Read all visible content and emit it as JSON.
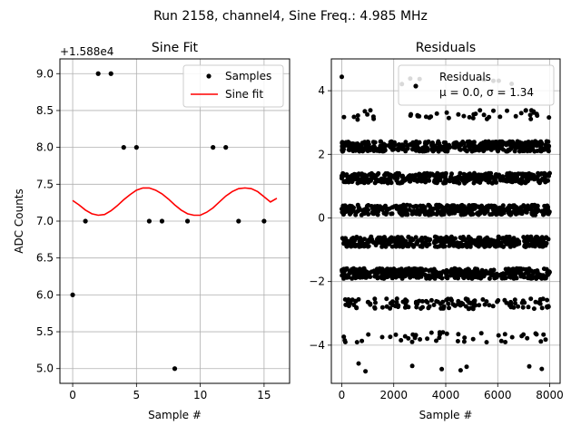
{
  "figure": {
    "title": "Run 2158, channel4, Sine Freq.: 4.985 MHz"
  },
  "chart_data": [
    {
      "type": "scatter",
      "title": "Sine Fit",
      "xlabel": "Sample #",
      "ylabel": "ADC Counts",
      "offset_text": "+1.588e4",
      "xlim": [
        -1,
        17
      ],
      "ylim": [
        4.8,
        9.2
      ],
      "x_ticks": [
        0,
        5,
        10,
        15
      ],
      "x_tick_labels": [
        "0",
        "5",
        "10",
        "15"
      ],
      "y_ticks": [
        5.0,
        5.5,
        6.0,
        6.5,
        7.0,
        7.5,
        8.0,
        8.5,
        9.0
      ],
      "y_tick_labels": [
        "5.0",
        "5.5",
        "6.0",
        "6.5",
        "7.0",
        "7.5",
        "8.0",
        "8.5",
        "9.0"
      ],
      "grid": true,
      "legend_position": "top-right",
      "series": [
        {
          "name": "Samples",
          "color": "#000000",
          "marker": "dot",
          "x": [
            0,
            1,
            2,
            3,
            4,
            5,
            6,
            7,
            8,
            9,
            11,
            12,
            13,
            15
          ],
          "y": [
            6,
            7,
            9,
            9,
            8,
            8,
            7,
            7,
            5,
            7,
            8,
            8,
            7,
            7
          ]
        },
        {
          "name": "Sine fit",
          "color": "#ff0000",
          "style": "line",
          "x": [
            0,
            0.5,
            1,
            1.5,
            2,
            2.5,
            3,
            3.5,
            4,
            4.5,
            5,
            5.5,
            6,
            6.5,
            7,
            7.5,
            8,
            8.5,
            9,
            9.5,
            10,
            10.5,
            11,
            11.5,
            12,
            12.5,
            13,
            13.5,
            14,
            14.5,
            15,
            15.5,
            16
          ],
          "y": [
            7.28,
            7.22,
            7.15,
            7.1,
            7.08,
            7.09,
            7.14,
            7.21,
            7.29,
            7.36,
            7.42,
            7.45,
            7.45,
            7.42,
            7.37,
            7.3,
            7.22,
            7.15,
            7.1,
            7.08,
            7.08,
            7.12,
            7.18,
            7.26,
            7.34,
            7.4,
            7.44,
            7.45,
            7.44,
            7.4,
            7.33,
            7.26,
            7.31
          ]
        }
      ]
    },
    {
      "type": "scatter",
      "title": "Residuals",
      "xlabel": "Sample #",
      "xlim": [
        -400,
        8400
      ],
      "ylim": [
        -5.2,
        5.0
      ],
      "x_ticks": [
        0,
        2000,
        4000,
        6000,
        8000
      ],
      "x_tick_labels": [
        "0",
        "2000",
        "4000",
        "6000",
        "8000"
      ],
      "y_ticks": [
        -4,
        -2,
        0,
        2,
        4
      ],
      "y_tick_labels": [
        "−4",
        "−2",
        "0",
        "2",
        "4"
      ],
      "grid": true,
      "legend_position": "top-right",
      "band_levels": [
        4.3,
        3.25,
        2.25,
        1.25,
        0.25,
        -0.75,
        -1.75,
        -2.7,
        -3.75,
        -4.7
      ],
      "band_density": [
        "very sparse",
        "sparse",
        "dense",
        "dense",
        "dense",
        "dense",
        "dense",
        "medium",
        "sparse",
        "very sparse"
      ],
      "n_samples": 8000,
      "series": [
        {
          "name": "Residuals",
          "color": "#000000",
          "marker": "dot"
        }
      ],
      "legend_stats": "μ = 0.0, σ = 1.34"
    }
  ]
}
